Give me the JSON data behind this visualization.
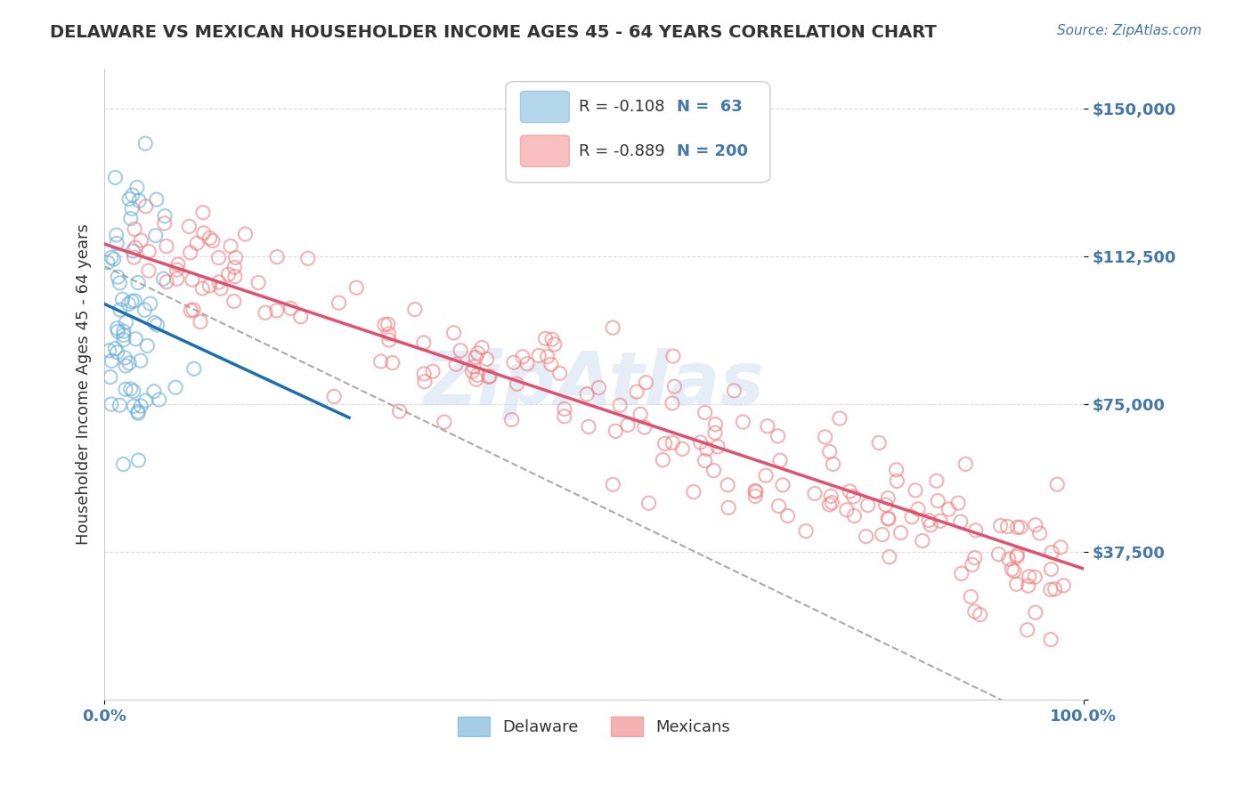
{
  "title": "DELAWARE VS MEXICAN HOUSEHOLDER INCOME AGES 45 - 64 YEARS CORRELATION CHART",
  "source": "Source: ZipAtlas.com",
  "xlabel": "",
  "ylabel": "Householder Income Ages 45 - 64 years",
  "xlim": [
    0.0,
    1.0
  ],
  "ylim": [
    0,
    160000
  ],
  "yticks": [
    0,
    37500,
    75000,
    112500,
    150000
  ],
  "ytick_labels": [
    "",
    "$37,500",
    "$75,000",
    "$112,500",
    "$150,000"
  ],
  "xticks": [
    0.0,
    1.0
  ],
  "xtick_labels": [
    "0.0%",
    "100.0%"
  ],
  "delaware_R": -0.108,
  "delaware_N": 63,
  "mexicans_R": -0.889,
  "mexicans_N": 200,
  "delaware_color": "#6aaed6",
  "mexicans_color": "#f08080",
  "delaware_trend_color": "#1a6faf",
  "mexicans_trend_color": "#e05070",
  "dashed_line_color": "#aaaaaa",
  "background_color": "#ffffff",
  "grid_color": "#dddddd",
  "title_color": "#333333",
  "axis_label_color": "#4477aa",
  "watermark_text": "ZipAtlas",
  "watermark_color": "#ccddee",
  "legend_items": [
    "Delaware",
    "Mexicans"
  ],
  "legend_colors": [
    "#6aaed6",
    "#f08080"
  ]
}
